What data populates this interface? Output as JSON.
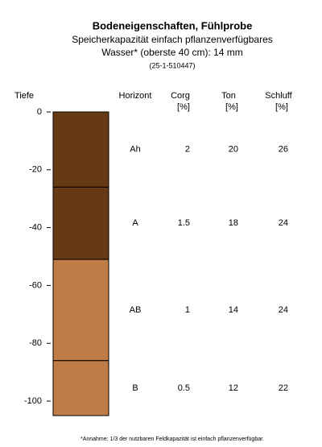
{
  "chart_data": {
    "type": "soil-profile",
    "title": "Bodeneigenschaften, Fühlprobe",
    "subtitle": [
      "Speicherkapazität einfach pflanzenverfügbares",
      "Wasser* (oberste 40 cm): 14 mm"
    ],
    "sample_id": "(25-1-510447)",
    "y_label": "Tiefe",
    "ylim": [
      -105,
      0
    ],
    "yticks": [
      0,
      -20,
      -40,
      -60,
      -80,
      -100
    ],
    "columns": [
      {
        "name": "Horizont"
      },
      {
        "name": "Corg",
        "unit": "[%]"
      },
      {
        "name": "Ton",
        "unit": "[%]"
      },
      {
        "name": "Schluff",
        "unit": "[%]"
      }
    ],
    "layers": [
      {
        "top": 0,
        "bottom": -26,
        "color": "#663a12",
        "horizon": "Ah",
        "corg": 2,
        "ton": 20,
        "schluff": 26
      },
      {
        "top": -26,
        "bottom": -51,
        "color": "#663a12",
        "horizon": "A",
        "corg": 1.5,
        "ton": 18,
        "schluff": 24
      },
      {
        "top": -51,
        "bottom": -86,
        "color": "#c07c46",
        "horizon": "AB",
        "corg": 1,
        "ton": 14,
        "schluff": 24
      },
      {
        "top": -86,
        "bottom": -105,
        "color": "#c07c46",
        "horizon": "B",
        "corg": 0.5,
        "ton": 12,
        "schluff": 22
      }
    ],
    "footnote": "*Annahme: 1/3 der nutzbaren Feldkapazität ist einfach pflanzenverfügbar."
  }
}
